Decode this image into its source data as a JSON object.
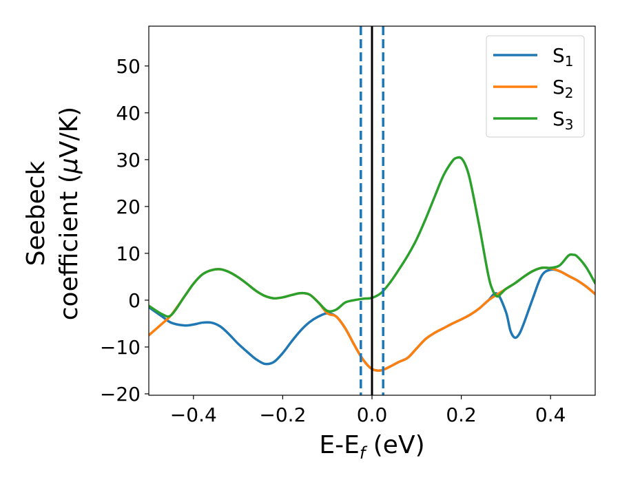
{
  "chart_data": {
    "type": "line",
    "xlabel": "E-E",
    "xlabel_sub": "f",
    "xlabel_unit": " (eV)",
    "ylabel_line1": "Seebeck",
    "ylabel_line2_pre": "coefficient  (",
    "ylabel_mu": "μ",
    "ylabel_line2_post": "V/K)",
    "xlim": [
      -0.5,
      0.5
    ],
    "ylim": [
      -20.3,
      58.5
    ],
    "x_ticks": [
      -0.4,
      -0.2,
      0.0,
      0.2,
      0.4
    ],
    "x_tick_labels": [
      "−0.4",
      "−0.2",
      "0.0",
      "0.2",
      "0.4"
    ],
    "y_ticks": [
      -20,
      -10,
      0,
      10,
      20,
      30,
      40,
      50
    ],
    "y_tick_labels": [
      "−20",
      "−10",
      "0",
      "10",
      "20",
      "30",
      "40",
      "50"
    ],
    "grid": false,
    "legend_position": "top-right",
    "vlines": [
      {
        "x": -0.025,
        "style": "dashed",
        "color": "#1f77b4"
      },
      {
        "x": 0.0,
        "style": "solid",
        "color": "#000000"
      },
      {
        "x": 0.025,
        "style": "dashed",
        "color": "#1f77b4"
      }
    ],
    "series": [
      {
        "name": "S",
        "sub": "1",
        "color": "#1f77b4",
        "x": [
          -0.5,
          -0.47,
          -0.45,
          -0.42,
          -0.4,
          -0.38,
          -0.36,
          -0.34,
          -0.32,
          -0.3,
          -0.28,
          -0.26,
          -0.24,
          -0.22,
          -0.2,
          -0.18,
          -0.16,
          -0.14,
          -0.12,
          -0.1,
          -0.08,
          -0.06,
          -0.04,
          -0.02,
          0.0,
          0.02,
          0.04,
          0.06,
          0.08,
          0.1,
          0.12,
          0.14,
          0.16,
          0.18,
          0.2,
          0.22,
          0.24,
          0.26,
          0.28,
          0.3,
          0.31,
          0.32,
          0.33,
          0.34,
          0.36,
          0.38,
          0.4,
          0.42,
          0.44,
          0.46,
          0.48,
          0.5
        ],
        "y": [
          -1.5,
          -3.5,
          -4.8,
          -5.4,
          -5.2,
          -4.8,
          -4.8,
          -5.6,
          -7.3,
          -9.3,
          -11.0,
          -12.6,
          -13.6,
          -13.2,
          -11.3,
          -8.8,
          -6.5,
          -4.7,
          -3.5,
          -2.8,
          -3.5,
          -6.0,
          -9.5,
          -12.7,
          -14.7,
          -15.0,
          -14.2,
          -13.2,
          -12.3,
          -10.3,
          -8.3,
          -7.0,
          -6.0,
          -5.0,
          -4.1,
          -3.1,
          -1.8,
          -0.1,
          1.4,
          -2.5,
          -6.5,
          -8.0,
          -7.2,
          -5.0,
          0.3,
          5.2,
          6.5,
          6.2,
          5.2,
          4.2,
          2.9,
          1.3
        ]
      },
      {
        "name": "S",
        "sub": "2",
        "color": "#ff7f0e",
        "x": [
          -0.5,
          -0.47,
          -0.45,
          -0.42,
          -0.4,
          -0.38,
          -0.36,
          -0.34,
          -0.32,
          -0.3,
          -0.28,
          -0.26,
          -0.24,
          -0.22,
          -0.2,
          -0.18,
          -0.16,
          -0.14,
          -0.12,
          -0.1,
          -0.08,
          -0.06,
          -0.04,
          -0.02,
          0.0,
          0.02,
          0.04,
          0.06,
          0.08,
          0.1,
          0.12,
          0.14,
          0.16,
          0.18,
          0.2,
          0.22,
          0.24,
          0.26,
          0.28,
          0.3,
          0.32,
          0.34,
          0.36,
          0.38,
          0.4,
          0.42,
          0.44,
          0.46,
          0.48,
          0.5
        ],
        "y": [
          -7.5,
          -5.0,
          -3.2,
          0.8,
          3.5,
          5.5,
          6.4,
          6.6,
          6.0,
          4.9,
          3.5,
          2.0,
          0.9,
          0.4,
          0.6,
          1.1,
          1.5,
          1.2,
          -0.5,
          -2.8,
          -3.5,
          -6.0,
          -9.5,
          -12.7,
          -14.7,
          -15.0,
          -14.2,
          -13.2,
          -12.3,
          -10.3,
          -8.3,
          -7.0,
          -6.0,
          -5.0,
          -4.1,
          -3.1,
          -1.8,
          -0.1,
          1.2,
          2.4,
          3.6,
          5.0,
          6.2,
          6.9,
          6.8,
          6.2,
          5.2,
          4.2,
          2.9,
          1.3
        ]
      },
      {
        "name": "S",
        "sub": "3",
        "color": "#2ca02c",
        "x": [
          -0.5,
          -0.47,
          -0.45,
          -0.42,
          -0.4,
          -0.38,
          -0.36,
          -0.34,
          -0.32,
          -0.3,
          -0.28,
          -0.26,
          -0.24,
          -0.22,
          -0.2,
          -0.18,
          -0.16,
          -0.14,
          -0.12,
          -0.1,
          -0.08,
          -0.06,
          -0.04,
          -0.02,
          0.0,
          0.02,
          0.04,
          0.06,
          0.08,
          0.1,
          0.12,
          0.14,
          0.16,
          0.18,
          0.19,
          0.2,
          0.21,
          0.22,
          0.24,
          0.26,
          0.27,
          0.28,
          0.29,
          0.3,
          0.32,
          0.34,
          0.36,
          0.38,
          0.4,
          0.42,
          0.44,
          0.45,
          0.46,
          0.48,
          0.5
        ],
        "y": [
          -1.2,
          -3.0,
          -3.2,
          0.8,
          3.5,
          5.5,
          6.4,
          6.6,
          6.0,
          4.9,
          3.5,
          2.0,
          0.9,
          0.4,
          0.6,
          1.1,
          1.5,
          1.2,
          -0.5,
          -2.3,
          -2.0,
          -0.5,
          0.0,
          0.3,
          0.5,
          1.5,
          3.7,
          6.5,
          9.5,
          13.0,
          17.3,
          22.0,
          26.6,
          29.7,
          30.4,
          30.3,
          28.7,
          25.5,
          16.0,
          5.6,
          2.2,
          0.8,
          1.5,
          2.4,
          3.6,
          5.0,
          6.2,
          6.9,
          6.9,
          7.4,
          9.5,
          9.7,
          9.3,
          7.0,
          3.6
        ]
      }
    ]
  }
}
